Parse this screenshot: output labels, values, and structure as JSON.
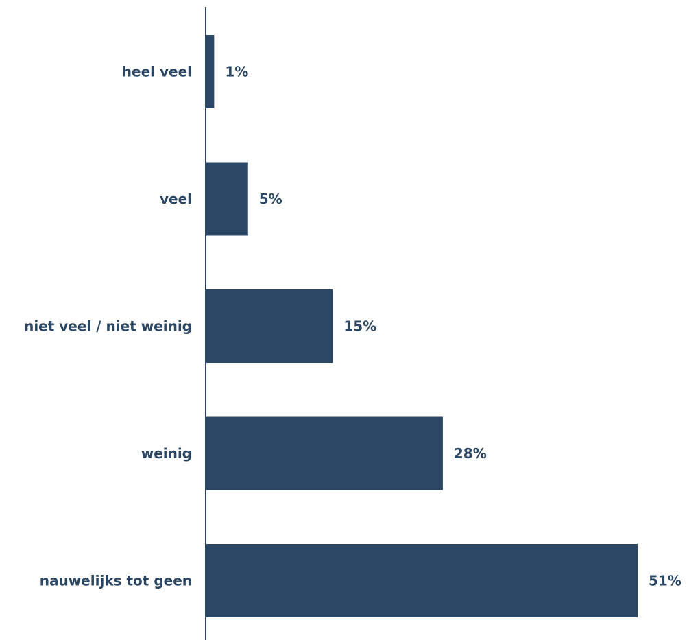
{
  "chart_data": {
    "type": "bar",
    "orientation": "horizontal",
    "title": "",
    "xlabel": "",
    "ylabel": "",
    "categories": [
      "heel veel",
      "veel",
      "niet veel / niet weinig",
      "weinig",
      "nauwelijks tot geen"
    ],
    "values": [
      1,
      5,
      15,
      28,
      51
    ],
    "value_labels": [
      "1%",
      "5%",
      "15%",
      "28%",
      "51%"
    ],
    "xlim": [
      0,
      51
    ],
    "grid": false,
    "legend": "none",
    "colors": {
      "bar": "#2c4763",
      "text": "#2c4763",
      "axis": "#2c4763"
    }
  }
}
